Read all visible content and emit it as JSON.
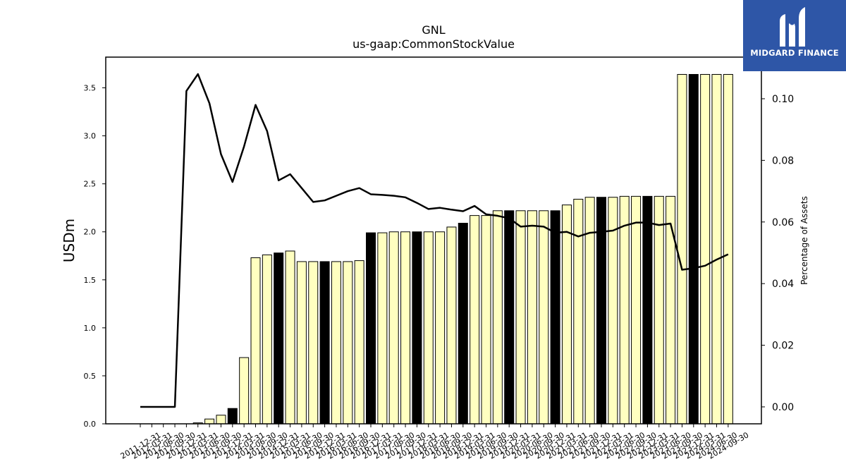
{
  "chart_data": {
    "type": "bar",
    "title": "GNL",
    "subtitle": "us-gaap:CommonStockValue",
    "ylabel": "USDm",
    "y2label": "Percentage of Assets",
    "ylim": [
      0,
      3.82
    ],
    "y2lim": [
      -0.0055,
      0.1135
    ],
    "yticks": [
      "0.0",
      "0.5",
      "1.0",
      "1.5",
      "2.0",
      "2.5",
      "3.0",
      "3.5"
    ],
    "y2ticks": [
      "0.00",
      "0.02",
      "0.04",
      "0.06",
      "0.08",
      "0.10"
    ],
    "categories": [
      "2011-12-31",
      "2012-03-31",
      "2012-06-30",
      "2012-09-30",
      "2012-12-31",
      "2013-03-31",
      "2013-06-30",
      "2013-09-30",
      "2013-12-31",
      "2014-03-31",
      "2014-06-30",
      "2014-09-30",
      "2014-12-31",
      "2015-03-31",
      "2015-06-30",
      "2015-09-30",
      "2015-12-31",
      "2016-03-31",
      "2016-06-30",
      "2016-09-30",
      "2016-12-31",
      "2017-03-31",
      "2017-06-30",
      "2017-09-30",
      "2017-12-31",
      "2018-03-31",
      "2018-06-30",
      "2018-09-30",
      "2018-12-31",
      "2019-03-31",
      "2019-06-30",
      "2019-09-30",
      "2019-12-31",
      "2020-03-31",
      "2020-06-30",
      "2020-09-30",
      "2020-12-31",
      "2021-03-31",
      "2021-06-30",
      "2021-09-30",
      "2021-12-31",
      "2022-03-31",
      "2022-06-30",
      "2022-09-30",
      "2022-12-31",
      "2023-03-31",
      "2023-06-30",
      "2023-09-30",
      "2023-12-31",
      "2024-03-31",
      "2024-06-30",
      "2024-09-30"
    ],
    "series": [
      {
        "kind": "bar",
        "values": [
          0,
          0,
          0,
          0,
          0,
          0.01,
          0.05,
          0.09,
          0.16,
          0.69,
          1.73,
          1.76,
          1.78,
          1.8,
          1.69,
          1.69,
          1.69,
          1.69,
          1.69,
          1.7,
          1.99,
          1.99,
          2.0,
          2.0,
          2.0,
          2.0,
          2.0,
          2.05,
          2.09,
          2.17,
          2.17,
          2.22,
          2.22,
          2.22,
          2.22,
          2.22,
          2.22,
          2.28,
          2.34,
          2.36,
          2.36,
          2.36,
          2.37,
          2.37,
          2.37,
          2.37,
          2.37,
          3.64,
          3.64,
          3.64,
          3.64,
          3.64
        ],
        "fiscal_year_end": [
          true,
          false,
          false,
          false,
          true,
          false,
          false,
          false,
          true,
          false,
          false,
          false,
          true,
          false,
          false,
          false,
          true,
          false,
          false,
          false,
          true,
          false,
          false,
          false,
          true,
          false,
          false,
          false,
          true,
          false,
          false,
          false,
          true,
          false,
          false,
          false,
          true,
          false,
          false,
          false,
          true,
          false,
          false,
          false,
          true,
          false,
          false,
          false,
          true,
          false,
          false,
          false
        ]
      },
      {
        "kind": "line",
        "axis": "right",
        "values": [
          0.0,
          0.0,
          0.0,
          0.0,
          0.1025,
          0.108,
          0.0985,
          0.082,
          0.073,
          0.0845,
          0.098,
          0.0895,
          0.0735,
          0.0755,
          0.071,
          0.0665,
          0.067,
          0.0685,
          0.07,
          0.071,
          0.069,
          0.0688,
          0.0685,
          0.068,
          0.0662,
          0.0642,
          0.0646,
          0.064,
          0.0635,
          0.0652,
          0.0625,
          0.062,
          0.0612,
          0.0585,
          0.0588,
          0.0585,
          0.0565,
          0.0568,
          0.0553,
          0.0565,
          0.0568,
          0.0572,
          0.0588,
          0.0598,
          0.0598,
          0.059,
          0.0595,
          0.0445,
          0.045,
          0.0458,
          0.0478,
          0.0495
        ]
      }
    ],
    "colors": {
      "bar_fill": "#ffffc0",
      "bar_fill_fiscal_year_end": "#000000",
      "bar_edge": "#000000",
      "line": "#000000"
    },
    "grid": false,
    "legend": "none"
  },
  "logo": {
    "text": "MIDGARD FINANCE",
    "background": "#2e56a7",
    "foreground": "#ffffff",
    "icon": "midgard-m-logo-icon"
  }
}
